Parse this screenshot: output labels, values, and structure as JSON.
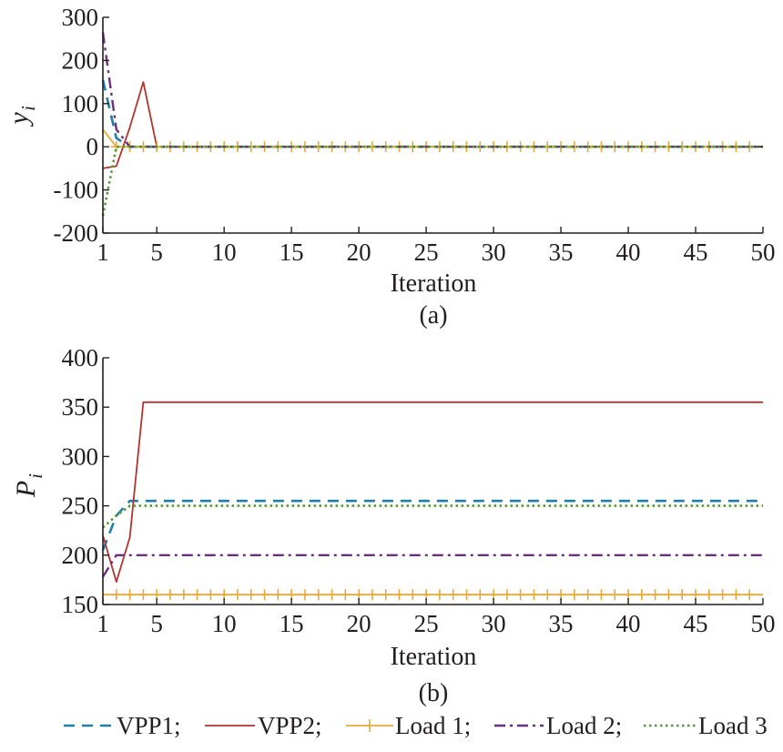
{
  "colors": {
    "VPP1": "#1f7fa8",
    "VPP2": "#b5332f",
    "Load 1": "#e8a93a",
    "Load 2": "#6b2f7f",
    "Load 3": "#4f9a34",
    "axis": "#231f20"
  },
  "chart_data": [
    {
      "type": "line",
      "caption": "(a)",
      "xlabel": "Iteration",
      "ylabel": "y",
      "ylabel_sub": "i",
      "xlim": [
        1,
        50
      ],
      "ylim": [
        -200,
        300
      ],
      "xticks": [
        1,
        5,
        10,
        15,
        20,
        25,
        30,
        35,
        40,
        45,
        50
      ],
      "yticks": [
        300,
        200,
        100,
        0,
        -100,
        -200
      ],
      "grid": false,
      "series": [
        {
          "name": "VPP1",
          "style": "dashed",
          "x": [
            1,
            2,
            3,
            4,
            5,
            50
          ],
          "y": [
            155,
            20,
            0,
            0,
            0,
            0
          ]
        },
        {
          "name": "VPP2",
          "style": "solid",
          "x": [
            1,
            2,
            3,
            4,
            5,
            50
          ],
          "y": [
            -50,
            -45,
            45,
            150,
            0,
            0
          ]
        },
        {
          "name": "Load 1",
          "style": "plus",
          "x": [
            1,
            2,
            3,
            50
          ],
          "y": [
            40,
            0,
            0,
            0
          ]
        },
        {
          "name": "Load 2",
          "style": "dashdot",
          "x": [
            1,
            2,
            3,
            4,
            50
          ],
          "y": [
            265,
            40,
            0,
            0,
            0
          ]
        },
        {
          "name": "Load 3",
          "style": "dotted",
          "x": [
            1,
            2,
            3,
            50
          ],
          "y": [
            -160,
            0,
            0,
            0
          ]
        }
      ]
    },
    {
      "type": "line",
      "caption": "(b)",
      "xlabel": "Iteration",
      "ylabel": "P",
      "ylabel_sub": "i",
      "xlim": [
        1,
        50
      ],
      "ylim": [
        150,
        400
      ],
      "xticks": [
        1,
        5,
        10,
        15,
        20,
        25,
        30,
        35,
        40,
        45,
        50
      ],
      "yticks": [
        400,
        350,
        300,
        250,
        200,
        150
      ],
      "grid": false,
      "series": [
        {
          "name": "VPP1",
          "style": "dashed",
          "x": [
            1,
            2,
            3,
            50
          ],
          "y": [
            205,
            240,
            255,
            255
          ]
        },
        {
          "name": "VPP2",
          "style": "solid",
          "x": [
            1,
            2,
            3,
            4,
            50
          ],
          "y": [
            220,
            173,
            218,
            355,
            355
          ]
        },
        {
          "name": "Load 1",
          "style": "plus",
          "x": [
            1,
            50
          ],
          "y": [
            160,
            160
          ]
        },
        {
          "name": "Load 2",
          "style": "dashdot",
          "x": [
            1,
            2,
            50
          ],
          "y": [
            178,
            200,
            200
          ]
        },
        {
          "name": "Load 3",
          "style": "dotted",
          "x": [
            1,
            2,
            3,
            50
          ],
          "y": [
            228,
            240,
            250,
            250
          ]
        }
      ]
    }
  ],
  "legend": {
    "placement": "bottom",
    "items": [
      {
        "label": "VPP1;",
        "series": "VPP1"
      },
      {
        "label": "VPP2;",
        "series": "VPP2"
      },
      {
        "label": "Load 1;",
        "series": "Load 1"
      },
      {
        "label": "Load 2;",
        "series": "Load 2"
      },
      {
        "label": "Load 3",
        "series": "Load 3"
      }
    ]
  }
}
